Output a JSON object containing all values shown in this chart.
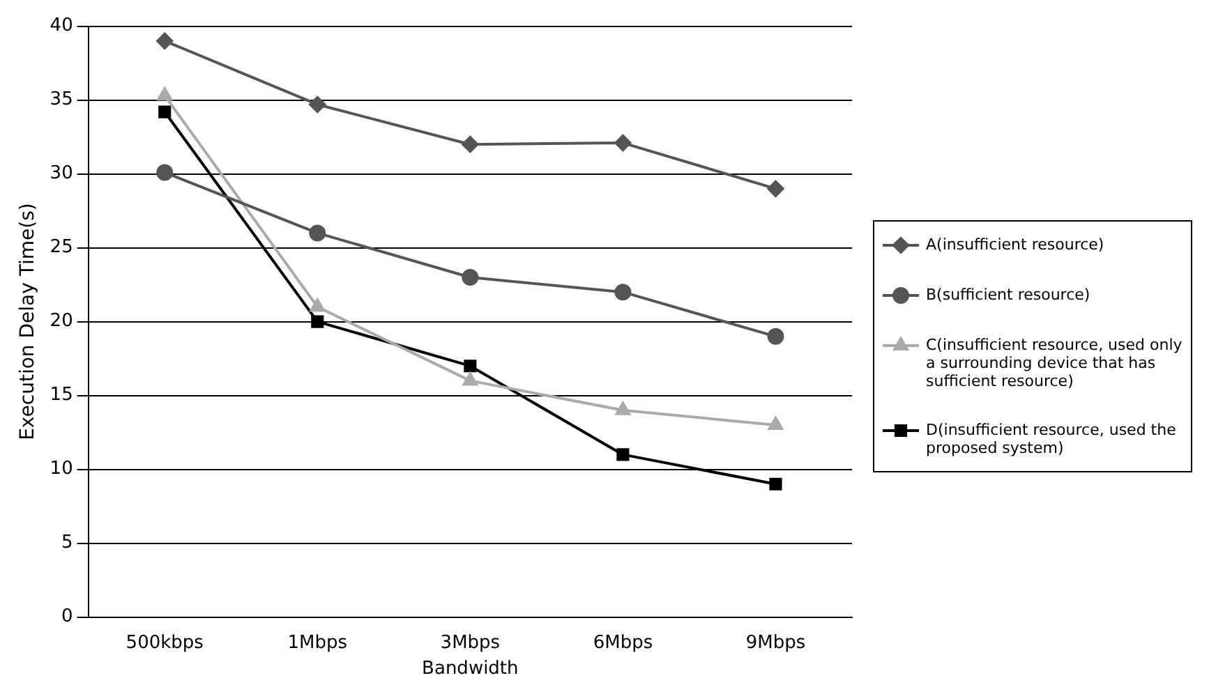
{
  "chart_data": {
    "type": "line",
    "xlabel": "Bandwidth",
    "ylabel": "Execution Delay Time(s)",
    "categories": [
      "500kbps",
      "1Mbps",
      "3Mbps",
      "6Mbps",
      "9Mbps"
    ],
    "ylim": [
      0,
      40
    ],
    "yticks": [
      0,
      5,
      10,
      15,
      20,
      25,
      30,
      35,
      40
    ],
    "grid": "y",
    "legend": "right",
    "series": [
      {
        "name": "A(insufficient resource)",
        "color": "#555555",
        "marker": "diamond",
        "values": [
          39,
          34.7,
          32,
          32.1,
          29
        ]
      },
      {
        "name": "B(sufficient resource)",
        "color": "#555555",
        "marker": "circle",
        "values": [
          30.1,
          26,
          23,
          22,
          19
        ]
      },
      {
        "name": "C(insufficient resource, used only a surrounding device that has sufficient resource)",
        "color": "#aaaaaa",
        "marker": "triangle",
        "values": [
          35.3,
          21,
          16,
          14,
          13
        ]
      },
      {
        "name": "D(insufficient resource, used the proposed system)",
        "color": "#000000",
        "marker": "square",
        "values": [
          34.2,
          20,
          17,
          11,
          9
        ]
      }
    ]
  }
}
